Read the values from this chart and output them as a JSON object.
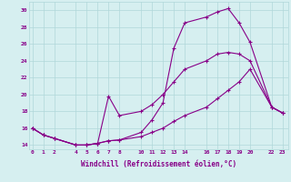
{
  "xlabel": "Windchill (Refroidissement éolien,°C)",
  "background_color": "#d6eff0",
  "grid_color": "#b0d8da",
  "line_color": "#880088",
  "x_ticks": [
    0,
    1,
    2,
    4,
    5,
    6,
    7,
    8,
    10,
    11,
    12,
    13,
    14,
    16,
    17,
    18,
    19,
    20,
    22,
    23
  ],
  "line1_x": [
    0,
    1,
    2,
    4,
    5,
    6,
    7,
    8,
    10,
    11,
    12,
    13,
    14,
    16,
    17,
    18,
    19,
    20,
    22,
    23
  ],
  "line1_y": [
    16.0,
    15.2,
    14.8,
    14.0,
    14.0,
    14.2,
    14.5,
    14.6,
    15.0,
    15.5,
    16.0,
    16.8,
    17.5,
    18.5,
    19.5,
    20.5,
    21.5,
    23.0,
    18.5,
    17.8
  ],
  "line2_x": [
    0,
    1,
    2,
    4,
    5,
    6,
    7,
    8,
    10,
    11,
    12,
    13,
    14,
    16,
    17,
    18,
    19,
    20,
    22,
    23
  ],
  "line2_y": [
    16.0,
    15.2,
    14.8,
    14.0,
    14.0,
    14.2,
    19.8,
    17.5,
    18.0,
    18.8,
    20.0,
    21.5,
    23.0,
    24.0,
    24.8,
    25.0,
    24.8,
    24.0,
    18.5,
    17.8
  ],
  "line3_x": [
    0,
    1,
    2,
    4,
    5,
    6,
    7,
    8,
    10,
    11,
    12,
    13,
    14,
    16,
    17,
    18,
    19,
    20,
    22,
    23
  ],
  "line3_y": [
    16.0,
    15.2,
    14.8,
    14.0,
    14.0,
    14.2,
    14.5,
    14.6,
    15.5,
    17.0,
    19.0,
    25.5,
    28.5,
    29.2,
    29.8,
    30.2,
    28.5,
    26.2,
    18.5,
    17.8
  ],
  "ylim": [
    13.5,
    31.0
  ],
  "xlim": [
    -0.3,
    23.5
  ],
  "yticks": [
    14,
    16,
    18,
    20,
    22,
    24,
    26,
    28,
    30
  ]
}
